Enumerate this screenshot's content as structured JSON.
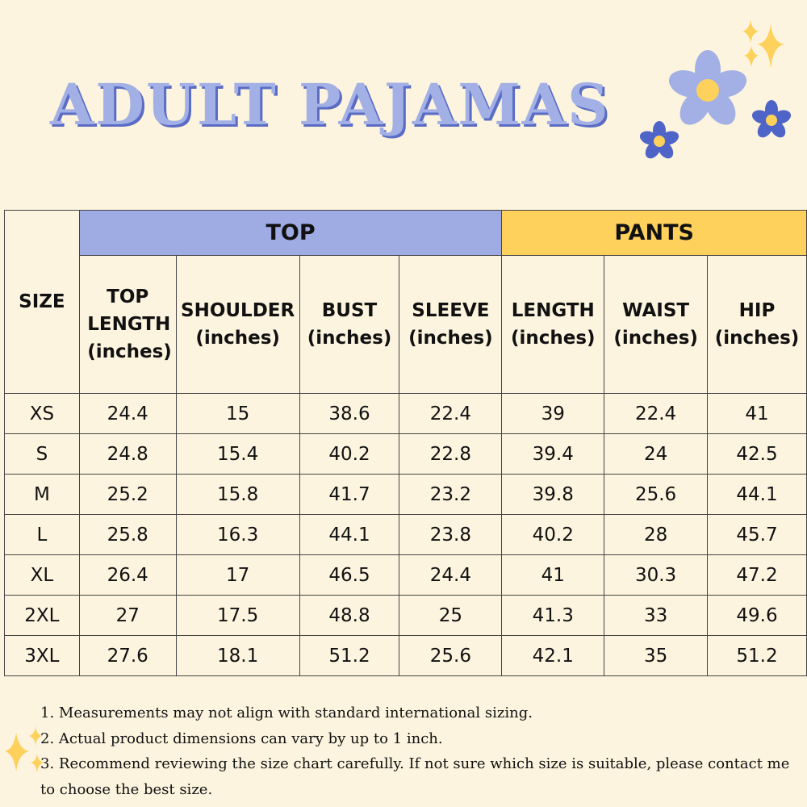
{
  "title": "ADULT PAJAMAS",
  "colors": {
    "background": "#fcf4de",
    "top_header": "#9eace3",
    "pants_header": "#fdd15c",
    "title": "#a3b0e6",
    "title_shadow": "#5a6cc4",
    "flower_light": "#a3b0e6",
    "flower_dark": "#4e64c8",
    "flower_center": "#fdd15c"
  },
  "table": {
    "group_headers": {
      "top": "TOP",
      "pants": "PANTS"
    },
    "size_header": "SIZE",
    "columns": [
      {
        "name": "TOP",
        "unit": "LENGTH (inches)"
      },
      {
        "name": "SHOULDER",
        "unit": "(inches)"
      },
      {
        "name": "BUST",
        "unit": "(inches)"
      },
      {
        "name": "SLEEVE",
        "unit": "(inches)"
      },
      {
        "name": "LENGTH",
        "unit": "(inches)"
      },
      {
        "name": "WAIST",
        "unit": "(inches)"
      },
      {
        "name": "HIP",
        "unit": "(inches)"
      }
    ],
    "rows": [
      [
        "XS",
        "24.4",
        "15",
        "38.6",
        "22.4",
        "39",
        "22.4",
        "41"
      ],
      [
        "S",
        "24.8",
        "15.4",
        "40.2",
        "22.8",
        "39.4",
        "24",
        "42.5"
      ],
      [
        "M",
        "25.2",
        "15.8",
        "41.7",
        "23.2",
        "39.8",
        "25.6",
        "44.1"
      ],
      [
        "L",
        "25.8",
        "16.3",
        "44.1",
        "23.8",
        "40.2",
        "28",
        "45.7"
      ],
      [
        "XL",
        "26.4",
        "17",
        "46.5",
        "24.4",
        "41",
        "30.3",
        "47.2"
      ],
      [
        "2XL",
        "27",
        "17.5",
        "48.8",
        "25",
        "41.3",
        "33",
        "49.6"
      ],
      [
        "3XL",
        "27.6",
        "18.1",
        "51.2",
        "25.6",
        "42.1",
        "35",
        "51.2"
      ]
    ]
  },
  "notes": [
    "1. Measurements may not align with standard international sizing.",
    "2. Actual product dimensions can vary by up to 1 inch.",
    "3. Recommend reviewing the size chart carefully. If not sure which size is suitable, please contact me to choose the best size."
  ]
}
